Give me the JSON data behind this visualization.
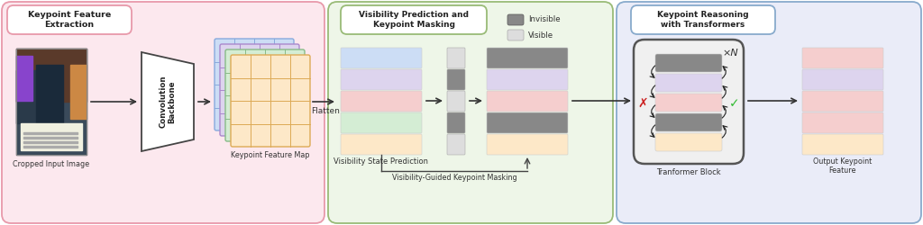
{
  "bg_pink": "#fce8ee",
  "bg_green": "#eef6e8",
  "bg_blue": "#eaecf8",
  "color_orange": "#fde8c8",
  "color_green_light": "#d4edd4",
  "color_pink": "#f5cece",
  "color_lavender": "#ddd4ee",
  "color_blue_light": "#ccddf5",
  "color_gray_dark": "#888888",
  "label_cropped": "Cropped Input Image",
  "label_conv": "Convolution\nBackbone",
  "label_kp_map": "Keypoint Feature Map",
  "label_flatten": "Flatten",
  "label_vis_pred": "Visibility State Prediction",
  "label_vis_mask": "Visibility-Guided Keypoint Masking",
  "label_transformer": "Tranformer Block",
  "label_output": "Output Keypoint\nFeature",
  "label_box1": "Keypoint Feature\nExtraction",
  "label_box2": "Visibility Prediction and\nKeypoint Masking",
  "label_box3": "Keypoint Reasoning\nwith Transformers",
  "label_visible": "Visible",
  "label_invisible": "Invisible",
  "label_xN": "×N",
  "strips_input": [
    "#fde8c8",
    "#d4edd4",
    "#f5cece",
    "#ddd4ee",
    "#ccddf5"
  ],
  "strips_masked": [
    "#fde8c8",
    "#888888",
    "#f5cece",
    "#ddd4ee",
    "#888888"
  ],
  "strips_output": [
    "#fde8c8",
    "#f5cece",
    "#f5cece",
    "#ddd4ee",
    "#f5cece"
  ],
  "strips_transformer": [
    "#fde8c8",
    "#888888",
    "#f5cece",
    "#ddd4ee",
    "#888888"
  ],
  "mask_pattern": [
    "#dddddd",
    "#888888",
    "#dddddd",
    "#888888",
    "#dddddd"
  ]
}
